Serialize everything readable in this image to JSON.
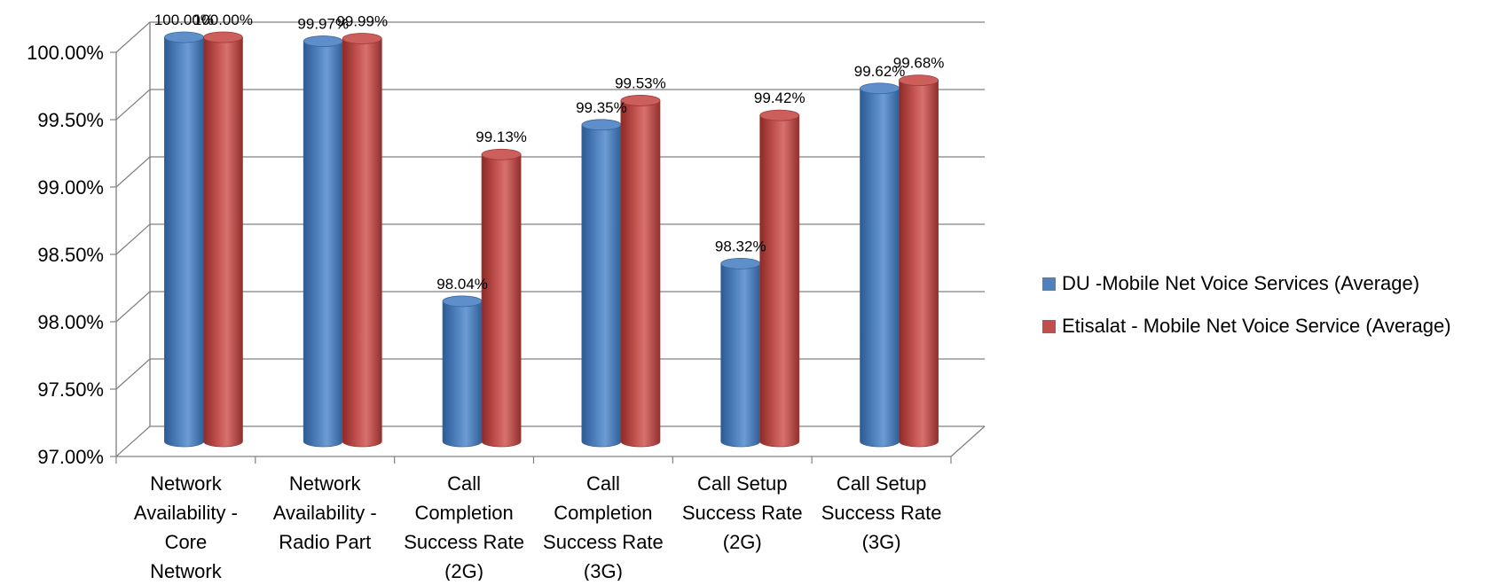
{
  "colors": {
    "du": "#4f81bd",
    "etisalat": "#c0504d",
    "gridline": "#808080",
    "text": "#000000"
  },
  "chart_data": {
    "type": "bar",
    "style": "3d-cylinder",
    "categories": [
      [
        "Network",
        "Availability -",
        "Core",
        "Network"
      ],
      [
        "Network",
        "Availability -",
        "Radio Part"
      ],
      [
        "Call",
        "Completion",
        "Success Rate",
        "(2G)"
      ],
      [
        "Call",
        "Completion",
        "Success Rate",
        "(3G)"
      ],
      [
        "Call Setup",
        "Success Rate",
        "(2G)"
      ],
      [
        "Call Setup",
        "Success Rate",
        "(3G)"
      ]
    ],
    "series": [
      {
        "name": "DU -Mobile Net Voice Services (Average)",
        "color": "#4f81bd",
        "values": [
          100.0,
          99.97,
          98.04,
          99.35,
          98.32,
          99.62
        ],
        "labels": [
          "100.00%",
          "99.97%",
          "98.04%",
          "99.35%",
          "98.32%",
          "99.62%"
        ]
      },
      {
        "name": "Etisalat - Mobile Net Voice Service (Average)",
        "color": "#c0504d",
        "values": [
          100.0,
          99.99,
          99.13,
          99.53,
          99.42,
          99.68
        ],
        "labels": [
          "100.00%",
          "99.99%",
          "99.13%",
          "99.53%",
          "99.42%",
          "99.68%"
        ]
      }
    ],
    "ylim": [
      97.0,
      100.0
    ],
    "yticks": [
      "97.00%",
      "97.50%",
      "98.00%",
      "98.50%",
      "99.00%",
      "99.50%",
      "100.00%"
    ],
    "grid": true,
    "legend_position": "right"
  }
}
